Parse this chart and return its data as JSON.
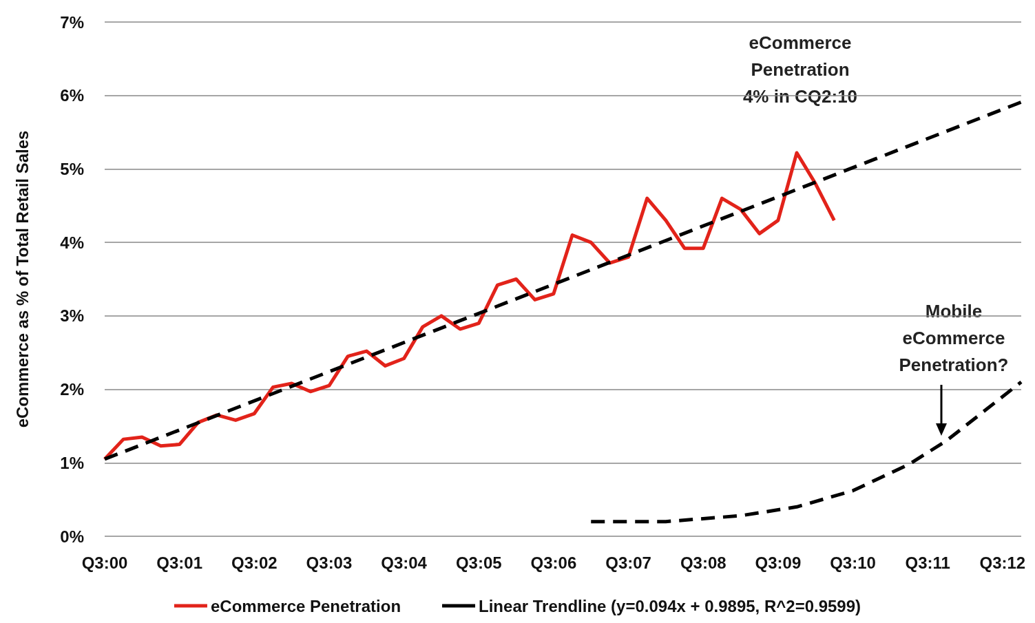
{
  "chart_data": {
    "type": "line",
    "ylabel": "eCommerce as % of Total Retail Sales",
    "categories": [
      "Q3:00",
      null,
      null,
      null,
      "Q3:01",
      null,
      null,
      null,
      "Q3:02",
      null,
      null,
      null,
      "Q3:03",
      null,
      null,
      null,
      "Q3:04",
      null,
      null,
      null,
      "Q3:05",
      null,
      null,
      null,
      "Q3:06",
      null,
      null,
      null,
      "Q3:07",
      null,
      null,
      null,
      "Q3:08",
      null,
      null,
      null,
      "Q3:09",
      null,
      null,
      null,
      "Q3:10",
      null,
      null,
      null,
      "Q3:11",
      null,
      null,
      null,
      "Q3:12",
      null
    ],
    "ylim": [
      0,
      7
    ],
    "yticks": [
      {
        "value": 0,
        "label": "0%"
      },
      {
        "value": 1,
        "label": "1%"
      },
      {
        "value": 2,
        "label": "2%"
      },
      {
        "value": 3,
        "label": "3%"
      },
      {
        "value": 4,
        "label": "4%"
      },
      {
        "value": 5,
        "label": "5%"
      },
      {
        "value": 6,
        "label": "6%"
      },
      {
        "value": 7,
        "label": "7%"
      }
    ],
    "grid": "y",
    "legend": "bottom",
    "marker": "none",
    "series": [
      {
        "name": "eCommerce Penetration",
        "color": "#e2231a",
        "line_style": "solid",
        "values": [
          1.05,
          1.32,
          1.35,
          1.23,
          1.25,
          1.55,
          1.65,
          1.58,
          1.67,
          2.03,
          2.08,
          1.97,
          2.05,
          2.45,
          2.52,
          2.32,
          2.42,
          2.85,
          3.0,
          2.82,
          2.9,
          3.42,
          3.5,
          3.22,
          3.3,
          4.1,
          4.0,
          3.72,
          3.8,
          4.6,
          4.3,
          3.92,
          3.92,
          4.6,
          4.45,
          4.12,
          4.3,
          5.22,
          4.8,
          4.3,
          null,
          null,
          null,
          null,
          null,
          null,
          null,
          null,
          null,
          null
        ]
      },
      {
        "name": "Linear Trendline (y=0.094x + 0.9895, R^2=0.9599)",
        "color": "#000000",
        "line_style": "dashed",
        "values": [
          1.05,
          null,
          null,
          null,
          null,
          null,
          null,
          null,
          null,
          null,
          null,
          null,
          null,
          null,
          null,
          null,
          null,
          null,
          null,
          null,
          null,
          null,
          null,
          null,
          null,
          null,
          null,
          null,
          null,
          null,
          null,
          null,
          null,
          null,
          null,
          null,
          null,
          null,
          null,
          null,
          null,
          null,
          null,
          null,
          null,
          null,
          null,
          null,
          null,
          5.91
        ]
      },
      {
        "color": "#000000",
        "line_style": "dashed",
        "values": [
          null,
          null,
          null,
          null,
          null,
          null,
          null,
          null,
          null,
          null,
          null,
          null,
          null,
          null,
          null,
          null,
          null,
          null,
          null,
          null,
          null,
          null,
          null,
          null,
          null,
          null,
          0.2,
          null,
          null,
          null,
          0.2,
          null,
          null,
          null,
          0.28,
          null,
          null,
          0.4,
          null,
          null,
          0.62,
          null,
          null,
          0.98,
          null,
          1.3,
          null,
          1.7,
          null,
          2.1
        ]
      }
    ],
    "annotations": [
      "eCommerce\nPenetration\n4% in CQ2:10",
      "Mobile\neCommerce\nPenetration?"
    ]
  }
}
